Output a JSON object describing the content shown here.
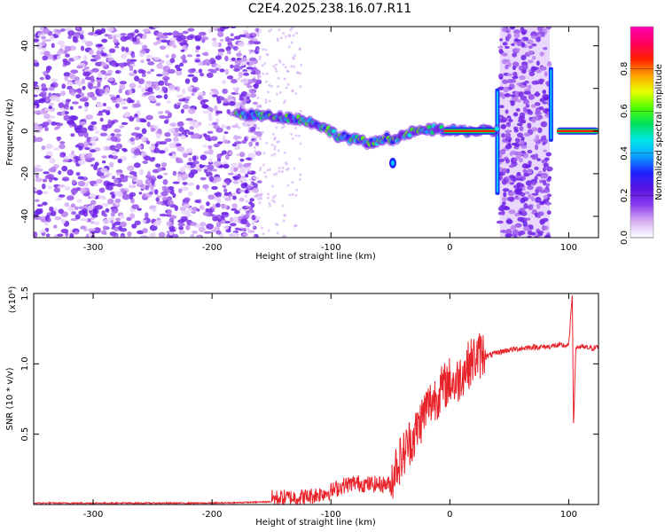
{
  "page": {
    "title": "C2E4.2025.238.16.07.R11"
  },
  "chart_data": [
    {
      "type": "heatmap",
      "name": "spectrogram",
      "xlabel": "Height of straight line (km)",
      "ylabel": "Frequency (Hz)",
      "xlim": [
        -350,
        125
      ],
      "ylim": [
        -50,
        49
      ],
      "xticks": [
        -300,
        -200,
        -100,
        0,
        100
      ],
      "yticks": [
        40,
        20,
        0,
        -20,
        -40
      ],
      "colorbar": {
        "label": "Normalized spectral amplitude",
        "range": [
          0,
          1
        ],
        "ticks": [
          0.0,
          0.2,
          0.4,
          0.6,
          0.8
        ],
        "tick_labels": [
          "0.0",
          "0.2",
          "0.4",
          "0.6",
          "0.8"
        ],
        "colormap": [
          "#ffffff",
          "#d6b0f2",
          "#8a3ef0",
          "#5a14e0",
          "#1e22ff",
          "#0aa0ff",
          "#00e8e8",
          "#00e060",
          "#50ff00",
          "#e8ff00",
          "#ffa000",
          "#ff2000",
          "#ff0060",
          "#ff00b0"
        ]
      },
      "ridge": {
        "x": [
          -180,
          -150,
          -130,
          -110,
          -95,
          -80,
          -65,
          -55,
          -45,
          -35,
          -25,
          -10,
          0,
          20,
          40
        ],
        "y": [
          8,
          7,
          6,
          3,
          -2,
          -4,
          -6,
          -3,
          -4,
          -1,
          0,
          1,
          0,
          0,
          0
        ]
      },
      "noise_region": [
        -350,
        -180
      ],
      "vertical_bands": [
        {
          "x_range": [
            42,
            84
          ]
        },
        {
          "x": 40
        },
        {
          "x": 85
        }
      ],
      "tone_segment": {
        "x_range": [
          90,
          125
        ],
        "y": 0
      }
    },
    {
      "type": "line",
      "name": "snr",
      "xlabel": "Height of straight line (km)",
      "ylabel": "SNR (10 * v/v)",
      "scale_note": "(x10⁴)",
      "xlim": [
        -350,
        125
      ],
      "ylim": [
        0,
        1.5
      ],
      "xticks": [
        -300,
        -200,
        -100,
        0,
        100
      ],
      "yticks": [
        0.5,
        1.0,
        1.5
      ],
      "series": [
        {
          "color": "#e8242b",
          "x": [
            -350,
            -300,
            -250,
            -200,
            -170,
            -150,
            -120,
            -100,
            -90,
            -80,
            -70,
            -60,
            -50,
            -45,
            -40,
            -35,
            -30,
            -25,
            -20,
            -15,
            -10,
            -5,
            0,
            5,
            10,
            20,
            30,
            40,
            50,
            60,
            70,
            80,
            90,
            100,
            103,
            104,
            106,
            110,
            120,
            125
          ],
          "y": [
            0.01,
            0.01,
            0.01,
            0.01,
            0.015,
            0.02,
            0.03,
            0.07,
            0.11,
            0.13,
            0.12,
            0.12,
            0.12,
            0.25,
            0.3,
            0.4,
            0.45,
            0.55,
            0.65,
            0.7,
            0.75,
            0.8,
            0.85,
            0.82,
            0.9,
            1.0,
            1.05,
            1.08,
            1.1,
            1.11,
            1.12,
            1.12,
            1.13,
            1.13,
            1.5,
            0.55,
            1.12,
            1.12,
            1.11,
            1.12
          ]
        }
      ]
    }
  ]
}
